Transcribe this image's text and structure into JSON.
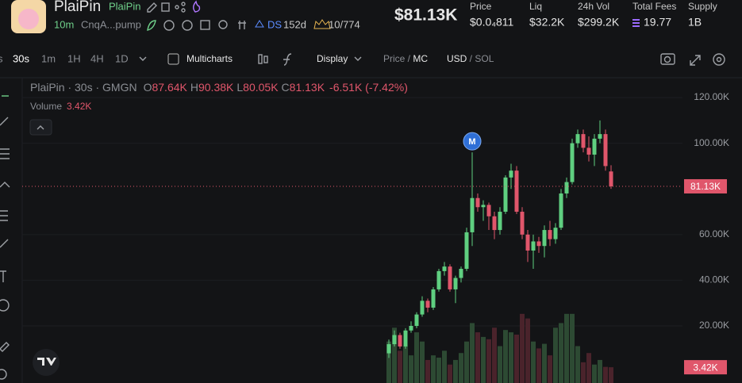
{
  "header": {
    "token_name": "PlaiPin",
    "token_symbol": "PlaiPin",
    "age": "10m",
    "address": "CnqA...pump",
    "ds_label": "DS",
    "ds_age": "152d",
    "holders": "10/774",
    "price": "$81.13K",
    "stats": [
      {
        "label": "Price",
        "value": "$0.0₄811"
      },
      {
        "label": "Liq",
        "value": "$32.2K"
      },
      {
        "label": "24h Vol",
        "value": "$299.2K"
      },
      {
        "label": "Total Fees",
        "value": "19.77"
      },
      {
        "label": "Supply",
        "value": "1B"
      }
    ]
  },
  "toolbar": {
    "intervals": [
      "30s",
      "1m",
      "1H",
      "4H",
      "1D"
    ],
    "multicharts": "Multicharts",
    "display": "Display",
    "price_mode": [
      "Price",
      "MC"
    ],
    "currency": [
      "USD",
      "SOL"
    ]
  },
  "chart_data": {
    "type": "candlestick",
    "legend": {
      "title": "PlaiPin · 30s · GMGN",
      "open_key": "O",
      "open": "87.64K",
      "high_key": "H",
      "high": "90.38K",
      "low_key": "L",
      "low": "80.05K",
      "close_key": "C",
      "close": "81.13K",
      "change": "-6.51K (-7.42%)",
      "volume_key": "Volume",
      "volume": "3.42K"
    },
    "last_price_label": "81.13K",
    "up_color": "#5fcf80",
    "down_color": "#e0566b",
    "ylim": [
      -5000,
      128000
    ],
    "yticks": [
      {
        "value": 20000,
        "label": "20.00K"
      },
      {
        "value": 40000,
        "label": "40.00K"
      },
      {
        "value": 60000,
        "label": "60.00K"
      },
      {
        "value": 100000,
        "label": "100.00K"
      },
      {
        "value": 120000,
        "label": "120.00K"
      }
    ],
    "volume_lim": [
      0,
      16000
    ],
    "candles": [
      {
        "open": 8000,
        "high": 14000,
        "low": 6000,
        "close": 12000
      },
      {
        "open": 12000,
        "high": 18000,
        "low": 11000,
        "close": 16000
      },
      {
        "open": 16000,
        "high": 17000,
        "low": 10000,
        "close": 11000
      },
      {
        "open": 11000,
        "high": 19000,
        "low": 10000,
        "close": 18000
      },
      {
        "open": 18000,
        "high": 22000,
        "low": 17000,
        "close": 20000
      },
      {
        "open": 20000,
        "high": 26000,
        "low": 19000,
        "close": 25000
      },
      {
        "open": 25000,
        "high": 33000,
        "low": 24000,
        "close": 31000
      },
      {
        "open": 31000,
        "high": 32000,
        "low": 26000,
        "close": 28000
      },
      {
        "open": 28000,
        "high": 37000,
        "low": 27000,
        "close": 36000
      },
      {
        "open": 36000,
        "high": 45000,
        "low": 35000,
        "close": 44000
      },
      {
        "open": 44000,
        "high": 48000,
        "low": 42000,
        "close": 46000
      },
      {
        "open": 46000,
        "high": 47000,
        "low": 35000,
        "close": 36000
      },
      {
        "open": 36000,
        "high": 42000,
        "low": 30000,
        "close": 41000
      },
      {
        "open": 41000,
        "high": 46000,
        "low": 39000,
        "close": 45000
      },
      {
        "open": 45000,
        "high": 63000,
        "low": 44000,
        "close": 61000
      },
      {
        "open": 61000,
        "high": 96000,
        "low": 55000,
        "close": 76000,
        "marker": "M"
      },
      {
        "open": 76000,
        "high": 78000,
        "low": 70000,
        "close": 72000
      },
      {
        "open": 72000,
        "high": 75000,
        "low": 66000,
        "close": 73000
      },
      {
        "open": 73000,
        "high": 74000,
        "low": 62000,
        "close": 68000
      },
      {
        "open": 68000,
        "high": 70000,
        "low": 58000,
        "close": 62000
      },
      {
        "open": 62000,
        "high": 72000,
        "low": 60000,
        "close": 70000
      },
      {
        "open": 70000,
        "high": 86000,
        "low": 69000,
        "close": 85000
      },
      {
        "open": 85000,
        "high": 91000,
        "low": 80000,
        "close": 88000
      },
      {
        "open": 88000,
        "high": 90000,
        "low": 69000,
        "close": 70000
      },
      {
        "open": 70000,
        "high": 72000,
        "low": 58000,
        "close": 60000
      },
      {
        "open": 60000,
        "high": 62000,
        "low": 48000,
        "close": 53000
      },
      {
        "open": 53000,
        "high": 60000,
        "low": 45000,
        "close": 57000
      },
      {
        "open": 57000,
        "high": 59000,
        "low": 52000,
        "close": 55000
      },
      {
        "open": 55000,
        "high": 64000,
        "low": 50000,
        "close": 62000
      },
      {
        "open": 62000,
        "high": 66000,
        "low": 55000,
        "close": 58000
      },
      {
        "open": 58000,
        "high": 65000,
        "low": 56000,
        "close": 63000
      },
      {
        "open": 63000,
        "high": 80000,
        "low": 62000,
        "close": 78000
      },
      {
        "open": 78000,
        "high": 85000,
        "low": 76000,
        "close": 83000
      },
      {
        "open": 83000,
        "high": 102000,
        "low": 82000,
        "close": 100000
      },
      {
        "open": 100000,
        "high": 106000,
        "low": 98000,
        "close": 104000
      },
      {
        "open": 104000,
        "high": 106000,
        "low": 96000,
        "close": 98000
      },
      {
        "open": 98000,
        "high": 103000,
        "low": 92000,
        "close": 95000
      },
      {
        "open": 95000,
        "high": 104000,
        "low": 90000,
        "close": 102000
      },
      {
        "open": 102000,
        "high": 110000,
        "low": 100000,
        "close": 104000
      },
      {
        "open": 104000,
        "high": 106000,
        "low": 88000,
        "close": 90000
      },
      {
        "open": 87640,
        "high": 90380,
        "low": 80050,
        "close": 81130
      }
    ],
    "volumes": [
      9000,
      12000,
      7000,
      8000,
      6000,
      11000,
      9000,
      5000,
      6000,
      5500,
      7000,
      4000,
      5000,
      6500,
      9000,
      13000,
      11000,
      10000,
      9500,
      12000,
      8000,
      11500,
      11000,
      10500,
      15000,
      14000,
      9000,
      7500,
      8500,
      6000,
      12000,
      13000,
      15000,
      15000,
      8000,
      4500,
      6500,
      4000,
      5000,
      3500,
      3420
    ]
  }
}
